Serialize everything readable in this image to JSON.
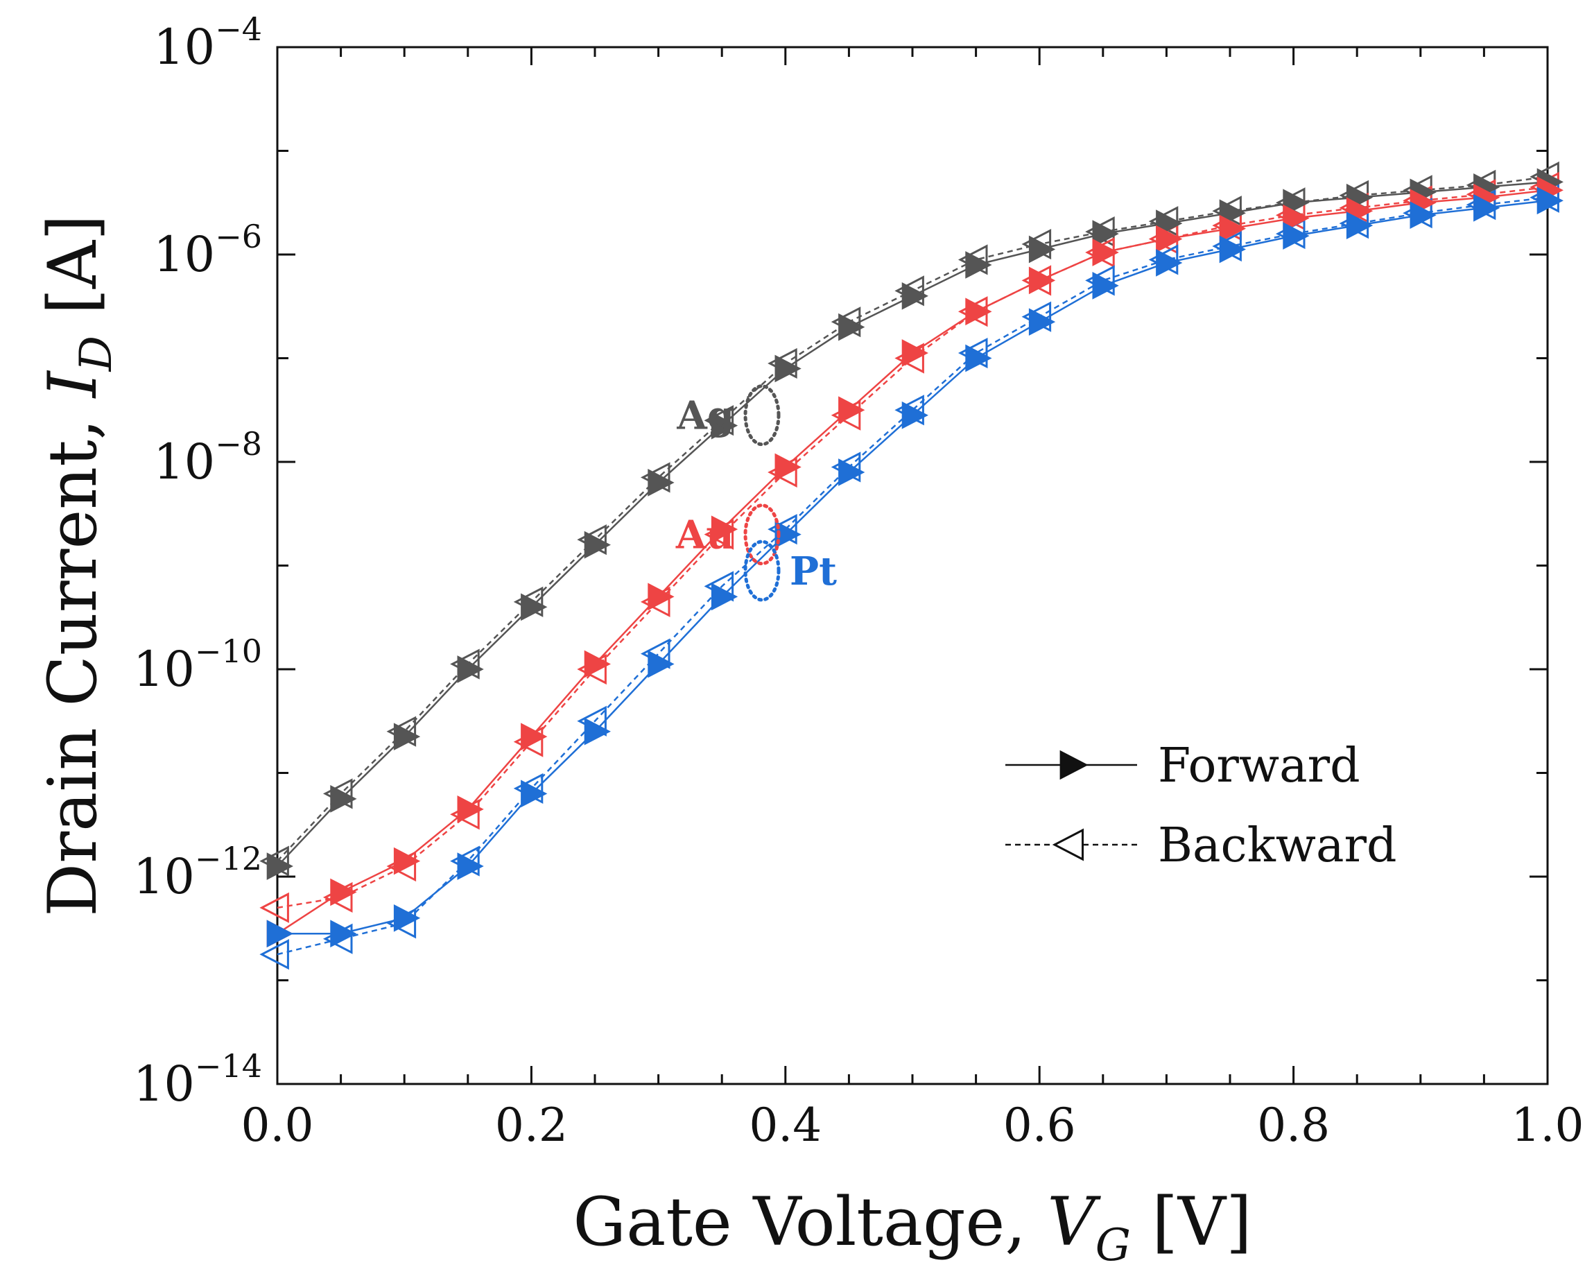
{
  "chart_data": {
    "type": "line",
    "title": "",
    "xlabel": {
      "prefix": "Gate Voltage, ",
      "var": "V",
      "sub": "G",
      "unit": " [V]"
    },
    "ylabel": {
      "prefix": "Drain Current, ",
      "var": "I",
      "sub": "D",
      "unit": " [A]"
    },
    "xlim": [
      0,
      1
    ],
    "ylim_log10": [
      -14,
      -4
    ],
    "yscale": "log",
    "x_ticks": [
      {
        "value": 0.0,
        "label": "0.0"
      },
      {
        "value": 0.2,
        "label": "0.2"
      },
      {
        "value": 0.4,
        "label": "0.4"
      },
      {
        "value": 0.6,
        "label": "0.6"
      },
      {
        "value": 0.8,
        "label": "0.8"
      },
      {
        "value": 1.0,
        "label": "1.0"
      }
    ],
    "y_ticks": [
      {
        "exp": -4,
        "base": "10",
        "power": "−4"
      },
      {
        "exp": -6,
        "base": "10",
        "power": "−6"
      },
      {
        "exp": -8,
        "base": "10",
        "power": "−8"
      },
      {
        "exp": -10,
        "base": "10",
        "power": "−10"
      },
      {
        "exp": -12,
        "base": "10",
        "power": "−12"
      },
      {
        "exp": -14,
        "base": "10",
        "power": "−14"
      }
    ],
    "x": [
      0.0,
      0.05,
      0.1,
      0.15,
      0.2,
      0.25,
      0.3,
      0.35,
      0.4,
      0.45,
      0.5,
      0.55,
      0.6,
      0.65,
      0.7,
      0.75,
      0.8,
      0.85,
      0.9,
      0.95,
      1.0
    ],
    "series": [
      {
        "name": "Ag Forward",
        "material": "Ag",
        "direction": "Forward",
        "color": "#555555",
        "log10_values": [
          -11.9,
          -11.25,
          -10.65,
          -10.0,
          -9.4,
          -8.8,
          -8.2,
          -7.65,
          -7.1,
          -6.7,
          -6.4,
          -6.1,
          -5.95,
          -5.8,
          -5.7,
          -5.6,
          -5.5,
          -5.45,
          -5.4,
          -5.35,
          -5.3
        ]
      },
      {
        "name": "Ag Backward",
        "material": "Ag",
        "direction": "Backward",
        "color": "#555555",
        "log10_values": [
          -11.85,
          -11.2,
          -10.6,
          -9.95,
          -9.35,
          -8.75,
          -8.15,
          -7.6,
          -7.05,
          -6.65,
          -6.35,
          -6.05,
          -5.9,
          -5.78,
          -5.68,
          -5.58,
          -5.5,
          -5.43,
          -5.38,
          -5.33,
          -5.25
        ]
      },
      {
        "name": "Au Forward",
        "material": "Au",
        "direction": "Forward",
        "color": "#ee4444",
        "log10_values": [
          -12.55,
          -12.15,
          -11.85,
          -11.35,
          -10.65,
          -9.95,
          -9.3,
          -8.65,
          -8.05,
          -7.5,
          -6.95,
          -6.55,
          -6.25,
          -5.98,
          -5.85,
          -5.75,
          -5.65,
          -5.58,
          -5.5,
          -5.45,
          -5.38
        ]
      },
      {
        "name": "Au Backward",
        "material": "Au",
        "direction": "Backward",
        "color": "#ee4444",
        "log10_values": [
          -12.3,
          -12.2,
          -11.9,
          -11.4,
          -10.7,
          -10.0,
          -9.35,
          -8.7,
          -8.1,
          -7.55,
          -7.0,
          -6.55,
          -6.25,
          -5.98,
          -5.85,
          -5.72,
          -5.62,
          -5.55,
          -5.48,
          -5.42,
          -5.35
        ]
      },
      {
        "name": "Pt Forward",
        "material": "Pt",
        "direction": "Forward",
        "color": "#1f6fd6",
        "log10_values": [
          -12.55,
          -12.55,
          -12.4,
          -11.9,
          -11.2,
          -10.6,
          -9.95,
          -9.3,
          -8.7,
          -8.1,
          -7.55,
          -7.0,
          -6.65,
          -6.3,
          -6.08,
          -5.95,
          -5.82,
          -5.72,
          -5.62,
          -5.55,
          -5.48
        ]
      },
      {
        "name": "Pt Backward",
        "material": "Pt",
        "direction": "Backward",
        "color": "#1f6fd6",
        "log10_values": [
          -12.75,
          -12.6,
          -12.45,
          -11.85,
          -11.15,
          -10.5,
          -9.85,
          -9.2,
          -8.65,
          -8.05,
          -7.5,
          -6.95,
          -6.6,
          -6.25,
          -6.05,
          -5.92,
          -5.8,
          -5.7,
          -5.6,
          -5.52,
          -5.45
        ]
      }
    ],
    "annotations": [
      {
        "text": "Ag",
        "color": "#555555",
        "at_x": 0.375,
        "at_log10": -7.55
      },
      {
        "text": "Au",
        "color": "#ee4444",
        "at_x": 0.375,
        "at_log10": -8.7
      },
      {
        "text": "Pt",
        "color": "#1f6fd6",
        "at_x": 0.375,
        "at_log10": -9.05
      }
    ],
    "legend": {
      "position": "lower-right",
      "entries": [
        {
          "label": "Forward",
          "style": "solid",
          "marker": "filled-triangle-right"
        },
        {
          "label": "Backward",
          "style": "dashed",
          "marker": "open-triangle-left"
        }
      ]
    },
    "grid": false
  }
}
